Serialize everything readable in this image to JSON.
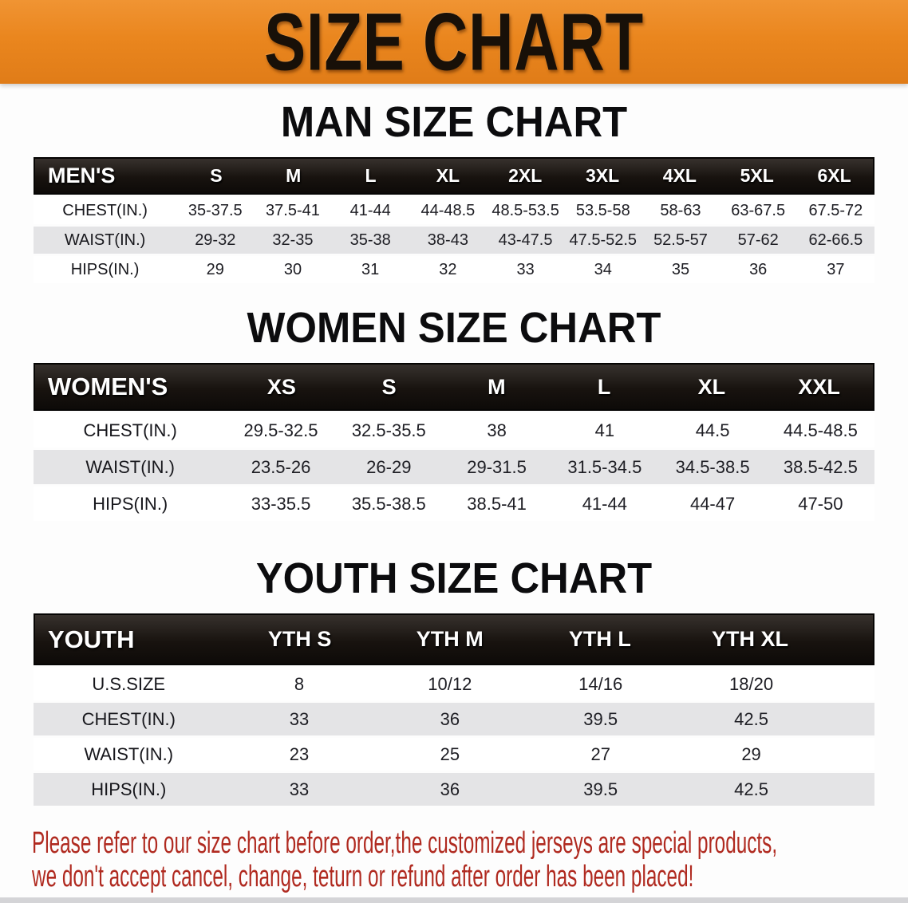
{
  "banner": {
    "title": "SIZE CHART",
    "bg_color": "#EA861E",
    "text_color": "#181008"
  },
  "sections": [
    {
      "heading": "MAN SIZE CHART",
      "table": {
        "header_label": "MEN'S",
        "columns": [
          "S",
          "M",
          "L",
          "XL",
          "2XL",
          "3XL",
          "4XL",
          "5XL",
          "6XL"
        ],
        "rows": [
          {
            "label": "CHEST(IN.)",
            "values": [
              "35-37.5",
              "37.5-41",
              "41-44",
              "44-48.5",
              "48.5-53.5",
              "53.5-58",
              "58-63",
              "63-67.5",
              "67.5-72"
            ]
          },
          {
            "label": "WAIST(IN.)",
            "values": [
              "29-32",
              "32-35",
              "35-38",
              "38-43",
              "43-47.5",
              "47.5-52.5",
              "52.5-57",
              "57-62",
              "62-66.5"
            ]
          },
          {
            "label": "HIPS(IN.)",
            "values": [
              "29",
              "30",
              "31",
              "32",
              "33",
              "34",
              "35",
              "36",
              "37"
            ]
          }
        ]
      }
    },
    {
      "heading": "WOMEN SIZE CHART",
      "table": {
        "header_label": "WOMEN'S",
        "columns": [
          "XS",
          "S",
          "M",
          "L",
          "XL",
          "XXL"
        ],
        "rows": [
          {
            "label": "CHEST(IN.)",
            "values": [
              "29.5-32.5",
              "32.5-35.5",
              "38",
              "41",
              "44.5",
              "44.5-48.5"
            ]
          },
          {
            "label": "WAIST(IN.)",
            "values": [
              "23.5-26",
              "26-29",
              "29-31.5",
              "31.5-34.5",
              "34.5-38.5",
              "38.5-42.5"
            ]
          },
          {
            "label": "HIPS(IN.)",
            "values": [
              "33-35.5",
              "35.5-38.5",
              "38.5-41",
              "41-44",
              "44-47",
              "47-50"
            ]
          }
        ]
      }
    },
    {
      "heading": "YOUTH SIZE CHART",
      "table": {
        "header_label": "YOUTH",
        "columns": [
          "YTH S",
          "YTH M",
          "YTH L",
          "YTH XL"
        ],
        "rows": [
          {
            "label": "U.S.SIZE",
            "values": [
              "8",
              "10/12",
              "14/16",
              "18/20"
            ]
          },
          {
            "label": "CHEST(IN.)",
            "values": [
              "33",
              "36",
              "39.5",
              "42.5"
            ]
          },
          {
            "label": "WAIST(IN.)",
            "values": [
              "23",
              "25",
              "27",
              "29"
            ]
          },
          {
            "label": "HIPS(IN.)",
            "values": [
              "33",
              "36",
              "39.5",
              "42.5"
            ]
          }
        ]
      }
    }
  ],
  "disclaimer": {
    "line1": "Please refer to our size chart before order,the customized jerseys are special products,",
    "line2": "we don't accept cancel, change, teturn or refund after order has been placed!",
    "color": "#B02A20"
  },
  "style_colors": {
    "table_header_bg": "#18130F",
    "row_stripe_gray": "#E4E4E6",
    "row_stripe_white": "#FFFFFF"
  }
}
